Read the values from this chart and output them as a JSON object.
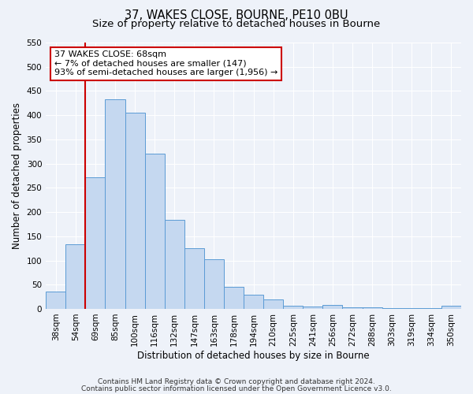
{
  "title": "37, WAKES CLOSE, BOURNE, PE10 0BU",
  "subtitle": "Size of property relative to detached houses in Bourne",
  "xlabel": "Distribution of detached houses by size in Bourne",
  "ylabel": "Number of detached properties",
  "bar_labels": [
    "38sqm",
    "54sqm",
    "69sqm",
    "85sqm",
    "100sqm",
    "116sqm",
    "132sqm",
    "147sqm",
    "163sqm",
    "178sqm",
    "194sqm",
    "210sqm",
    "225sqm",
    "241sqm",
    "256sqm",
    "272sqm",
    "288sqm",
    "303sqm",
    "319sqm",
    "334sqm",
    "350sqm"
  ],
  "bar_values": [
    35,
    133,
    272,
    433,
    405,
    321,
    184,
    125,
    103,
    45,
    30,
    19,
    6,
    5,
    8,
    4,
    3,
    2,
    1,
    1,
    6
  ],
  "bar_color": "#c5d8f0",
  "bar_edge_color": "#5b9bd5",
  "ylim": [
    0,
    550
  ],
  "yticks": [
    0,
    50,
    100,
    150,
    200,
    250,
    300,
    350,
    400,
    450,
    500,
    550
  ],
  "redline_index": 2,
  "annotation_title": "37 WAKES CLOSE: 68sqm",
  "annotation_line1": "← 7% of detached houses are smaller (147)",
  "annotation_line2": "93% of semi-detached houses are larger (1,956) →",
  "annotation_box_facecolor": "#ffffff",
  "annotation_box_edgecolor": "#cc0000",
  "redline_color": "#cc0000",
  "footer1": "Contains HM Land Registry data © Crown copyright and database right 2024.",
  "footer2": "Contains public sector information licensed under the Open Government Licence v3.0.",
  "bg_color": "#eef2f9",
  "grid_color": "#ffffff",
  "title_fontsize": 10.5,
  "subtitle_fontsize": 9.5,
  "axis_label_fontsize": 8.5,
  "tick_fontsize": 7.5,
  "annotation_fontsize": 8,
  "footer_fontsize": 6.5
}
